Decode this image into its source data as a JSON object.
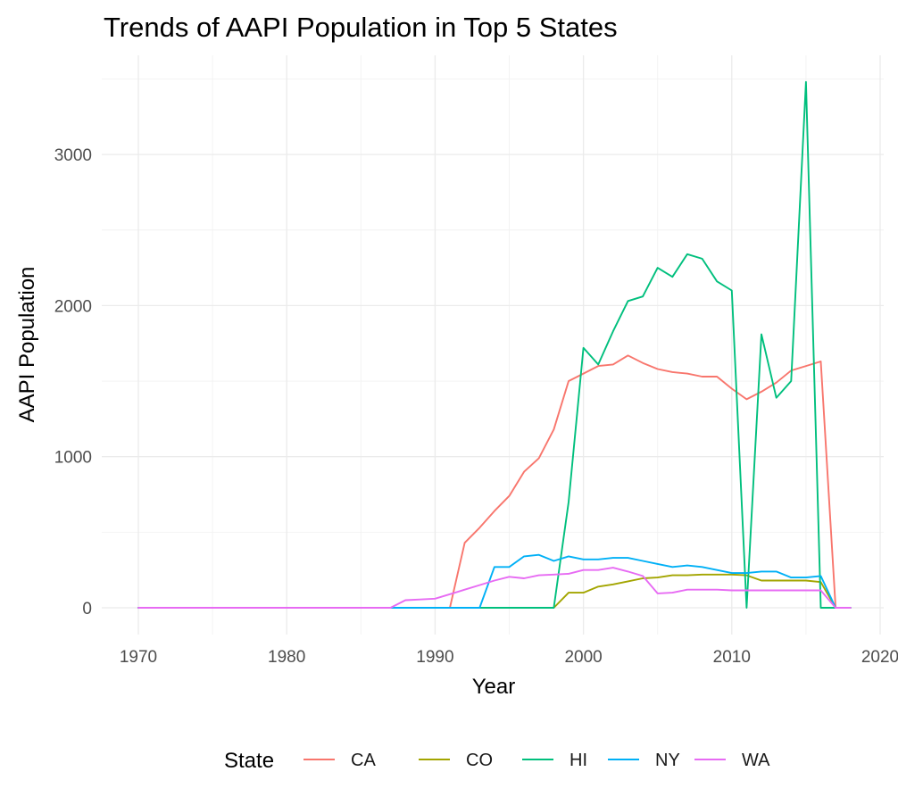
{
  "chart_data": {
    "type": "line",
    "title": "Trends of AAPI Population in Top 5 States",
    "xlabel": "Year",
    "ylabel": "AAPI Population",
    "xlim": [
      1970,
      2020
    ],
    "ylim": [
      0,
      3600
    ],
    "x_ticks": [
      1970,
      1980,
      1990,
      2000,
      2010,
      2020
    ],
    "y_ticks": [
      0,
      1000,
      2000,
      3000
    ],
    "x_tick_labels": [
      "1970",
      "1980",
      "1990",
      "2000",
      "2010",
      "2020"
    ],
    "y_tick_labels": [
      "0",
      "1000",
      "2000",
      "3000"
    ],
    "grid": true,
    "legend": {
      "title": "State",
      "position": "bottom"
    },
    "series": [
      {
        "name": "CA",
        "color": "#F8766D",
        "x": [
          1970,
          1991,
          1992,
          1993,
          1994,
          1995,
          1996,
          1997,
          1998,
          1999,
          2000,
          2001,
          2002,
          2003,
          2004,
          2005,
          2006,
          2007,
          2008,
          2009,
          2010,
          2011,
          2012,
          2013,
          2014,
          2015,
          2016,
          2017,
          2018
        ],
        "values": [
          0,
          0,
          430,
          530,
          640,
          740,
          900,
          990,
          1180,
          1500,
          1550,
          1600,
          1610,
          1670,
          1620,
          1580,
          1560,
          1550,
          1530,
          1530,
          1450,
          1380,
          1430,
          1490,
          1570,
          1600,
          1630,
          0,
          0
        ]
      },
      {
        "name": "CO",
        "color": "#A3A500",
        "x": [
          1970,
          1998,
          1999,
          2000,
          2001,
          2002,
          2003,
          2004,
          2005,
          2006,
          2007,
          2008,
          2009,
          2010,
          2011,
          2012,
          2013,
          2014,
          2015,
          2016,
          2017,
          2018
        ],
        "values": [
          0,
          0,
          100,
          100,
          140,
          155,
          175,
          195,
          200,
          215,
          215,
          220,
          220,
          220,
          215,
          180,
          180,
          180,
          180,
          170,
          0,
          0
        ]
      },
      {
        "name": "HI",
        "color": "#00BF7D",
        "x": [
          1970,
          1998,
          1999,
          2000,
          2001,
          2002,
          2003,
          2004,
          2005,
          2006,
          2007,
          2008,
          2009,
          2010,
          2011,
          2012,
          2013,
          2014,
          2015,
          2016,
          2017,
          2018
        ],
        "values": [
          0,
          0,
          700,
          1720,
          1610,
          1830,
          2030,
          2060,
          2250,
          2190,
          2340,
          2310,
          2160,
          2100,
          0,
          1810,
          1390,
          1500,
          3480,
          0,
          0,
          0
        ]
      },
      {
        "name": "NY",
        "color": "#00B0F6",
        "x": [
          1970,
          1993,
          1994,
          1995,
          1996,
          1997,
          1998,
          1999,
          2000,
          2001,
          2002,
          2003,
          2004,
          2005,
          2006,
          2007,
          2008,
          2009,
          2010,
          2011,
          2012,
          2013,
          2014,
          2015,
          2016,
          2017,
          2018
        ],
        "values": [
          0,
          0,
          270,
          270,
          340,
          350,
          310,
          340,
          320,
          320,
          330,
          330,
          310,
          290,
          270,
          280,
          270,
          250,
          230,
          230,
          240,
          240,
          200,
          200,
          210,
          0,
          0
        ]
      },
      {
        "name": "WA",
        "color": "#E76BF3",
        "x": [
          1970,
          1987,
          1988,
          1989,
          1990,
          1991,
          1992,
          1993,
          1994,
          1995,
          1996,
          1997,
          1998,
          1999,
          2000,
          2001,
          2002,
          2003,
          2004,
          2005,
          2006,
          2007,
          2008,
          2009,
          2010,
          2011,
          2012,
          2013,
          2014,
          2015,
          2016,
          2017,
          2018
        ],
        "values": [
          0,
          0,
          50,
          55,
          60,
          90,
          120,
          150,
          180,
          205,
          195,
          215,
          220,
          225,
          250,
          250,
          265,
          240,
          210,
          95,
          100,
          120,
          120,
          120,
          115,
          115,
          115,
          115,
          115,
          115,
          115,
          0,
          0
        ]
      }
    ]
  }
}
